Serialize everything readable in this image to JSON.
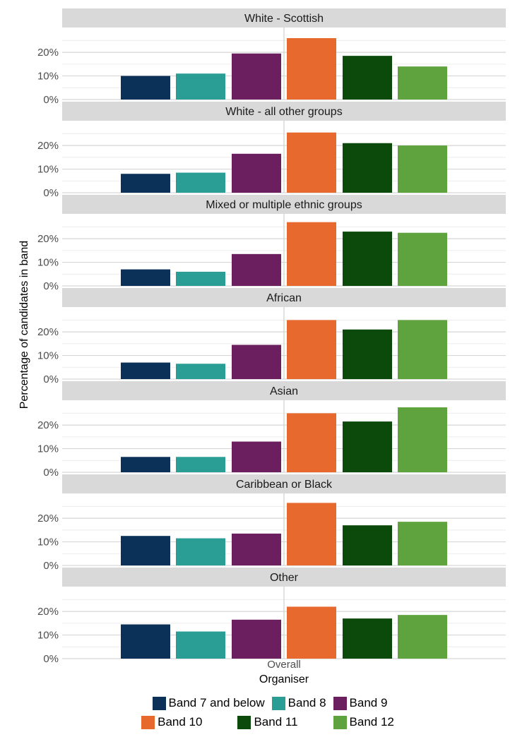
{
  "chart_data": {
    "type": "bar",
    "facet_by": "ethnic group",
    "xlabel": "Organiser",
    "ylabel": "Percentage of candidates in band",
    "x_category": "Overall",
    "y_ticks": [
      "0%",
      "10%",
      "20%"
    ],
    "ylim": [
      0,
      0.29
    ],
    "grid": true,
    "legend_position": "bottom",
    "bands": [
      {
        "name": "Band 7 and below",
        "color": "#0b3158"
      },
      {
        "name": "Band 8",
        "color": "#2a9d94"
      },
      {
        "name": "Band 9",
        "color": "#6b1f5f"
      },
      {
        "name": "Band 10",
        "color": "#e8692d"
      },
      {
        "name": "Band 11",
        "color": "#0c4a0c"
      },
      {
        "name": "Band 12",
        "color": "#5ea33d"
      }
    ],
    "panels": [
      {
        "title": "White - Scottish",
        "values": [
          0.1,
          0.11,
          0.195,
          0.26,
          0.185,
          0.14
        ]
      },
      {
        "title": "White - all other groups",
        "values": [
          0.08,
          0.085,
          0.165,
          0.255,
          0.21,
          0.2
        ]
      },
      {
        "title": "Mixed or multiple ethnic groups",
        "values": [
          0.07,
          0.06,
          0.135,
          0.27,
          0.23,
          0.225
        ]
      },
      {
        "title": "African",
        "values": [
          0.07,
          0.065,
          0.145,
          0.25,
          0.21,
          0.25
        ]
      },
      {
        "title": "Asian",
        "values": [
          0.065,
          0.065,
          0.13,
          0.25,
          0.215,
          0.275
        ]
      },
      {
        "title": "Caribbean or Black",
        "values": [
          0.125,
          0.115,
          0.135,
          0.265,
          0.17,
          0.185
        ]
      },
      {
        "title": "Other",
        "values": [
          0.145,
          0.115,
          0.165,
          0.22,
          0.17,
          0.185
        ]
      }
    ]
  }
}
